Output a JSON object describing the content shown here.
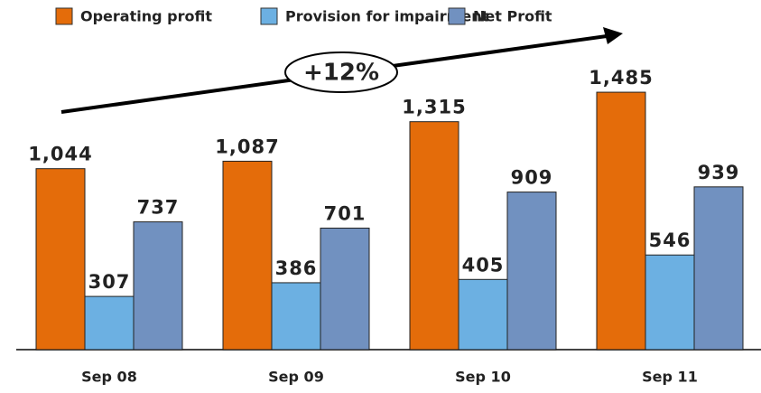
{
  "chart_data": {
    "type": "bar",
    "categories": [
      "Sep 08",
      "Sep 09",
      "Sep 10",
      "Sep 11"
    ],
    "series": [
      {
        "name": "Operating profit",
        "color": "#e46c0a",
        "values": [
          1044,
          1087,
          1315,
          1485
        ],
        "value_labels": [
          "1,044",
          "1,087",
          "1,315",
          "1,485"
        ]
      },
      {
        "name": "Provision for impairment",
        "color": "#6cb0e2",
        "values": [
          307,
          386,
          405,
          546
        ]
      },
      {
        "name": "Net Profit",
        "color": "#7191c0",
        "values": [
          737,
          701,
          909,
          939
        ]
      }
    ],
    "annotation": "+12%",
    "ylim": [
      0,
      1600
    ]
  }
}
